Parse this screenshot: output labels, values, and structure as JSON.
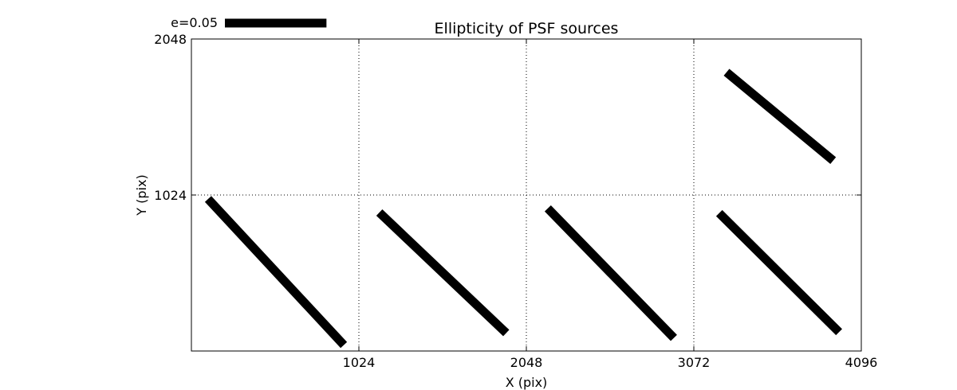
{
  "chart_data": {
    "type": "quiver",
    "title": "Ellipticity of PSF sources",
    "xlabel": "X (pix)",
    "ylabel": "Y (pix)",
    "xlim": [
      0,
      4096
    ],
    "ylim": [
      0,
      2048
    ],
    "grid": true,
    "x_ticks": [
      1024,
      2048,
      3072,
      4096
    ],
    "x_tick_labels": [
      "1024",
      "2048",
      "3072",
      "4096"
    ],
    "y_ticks": [
      1024,
      2048
    ],
    "y_tick_labels": [
      "1024",
      "2048"
    ],
    "key": {
      "label": "e=0.05",
      "e": 0.05,
      "length": 621
    },
    "segments": [
      {
        "x1": 102,
        "y1": 998,
        "x2": 932,
        "y2": 39
      },
      {
        "x1": 1149,
        "y1": 909,
        "x2": 1925,
        "y2": 118
      },
      {
        "x1": 2179,
        "y1": 936,
        "x2": 2950,
        "y2": 86
      },
      {
        "x1": 3227,
        "y1": 905,
        "x2": 3960,
        "y2": 124
      },
      {
        "x1": 3272,
        "y1": 1830,
        "x2": 3924,
        "y2": 1250
      }
    ]
  }
}
